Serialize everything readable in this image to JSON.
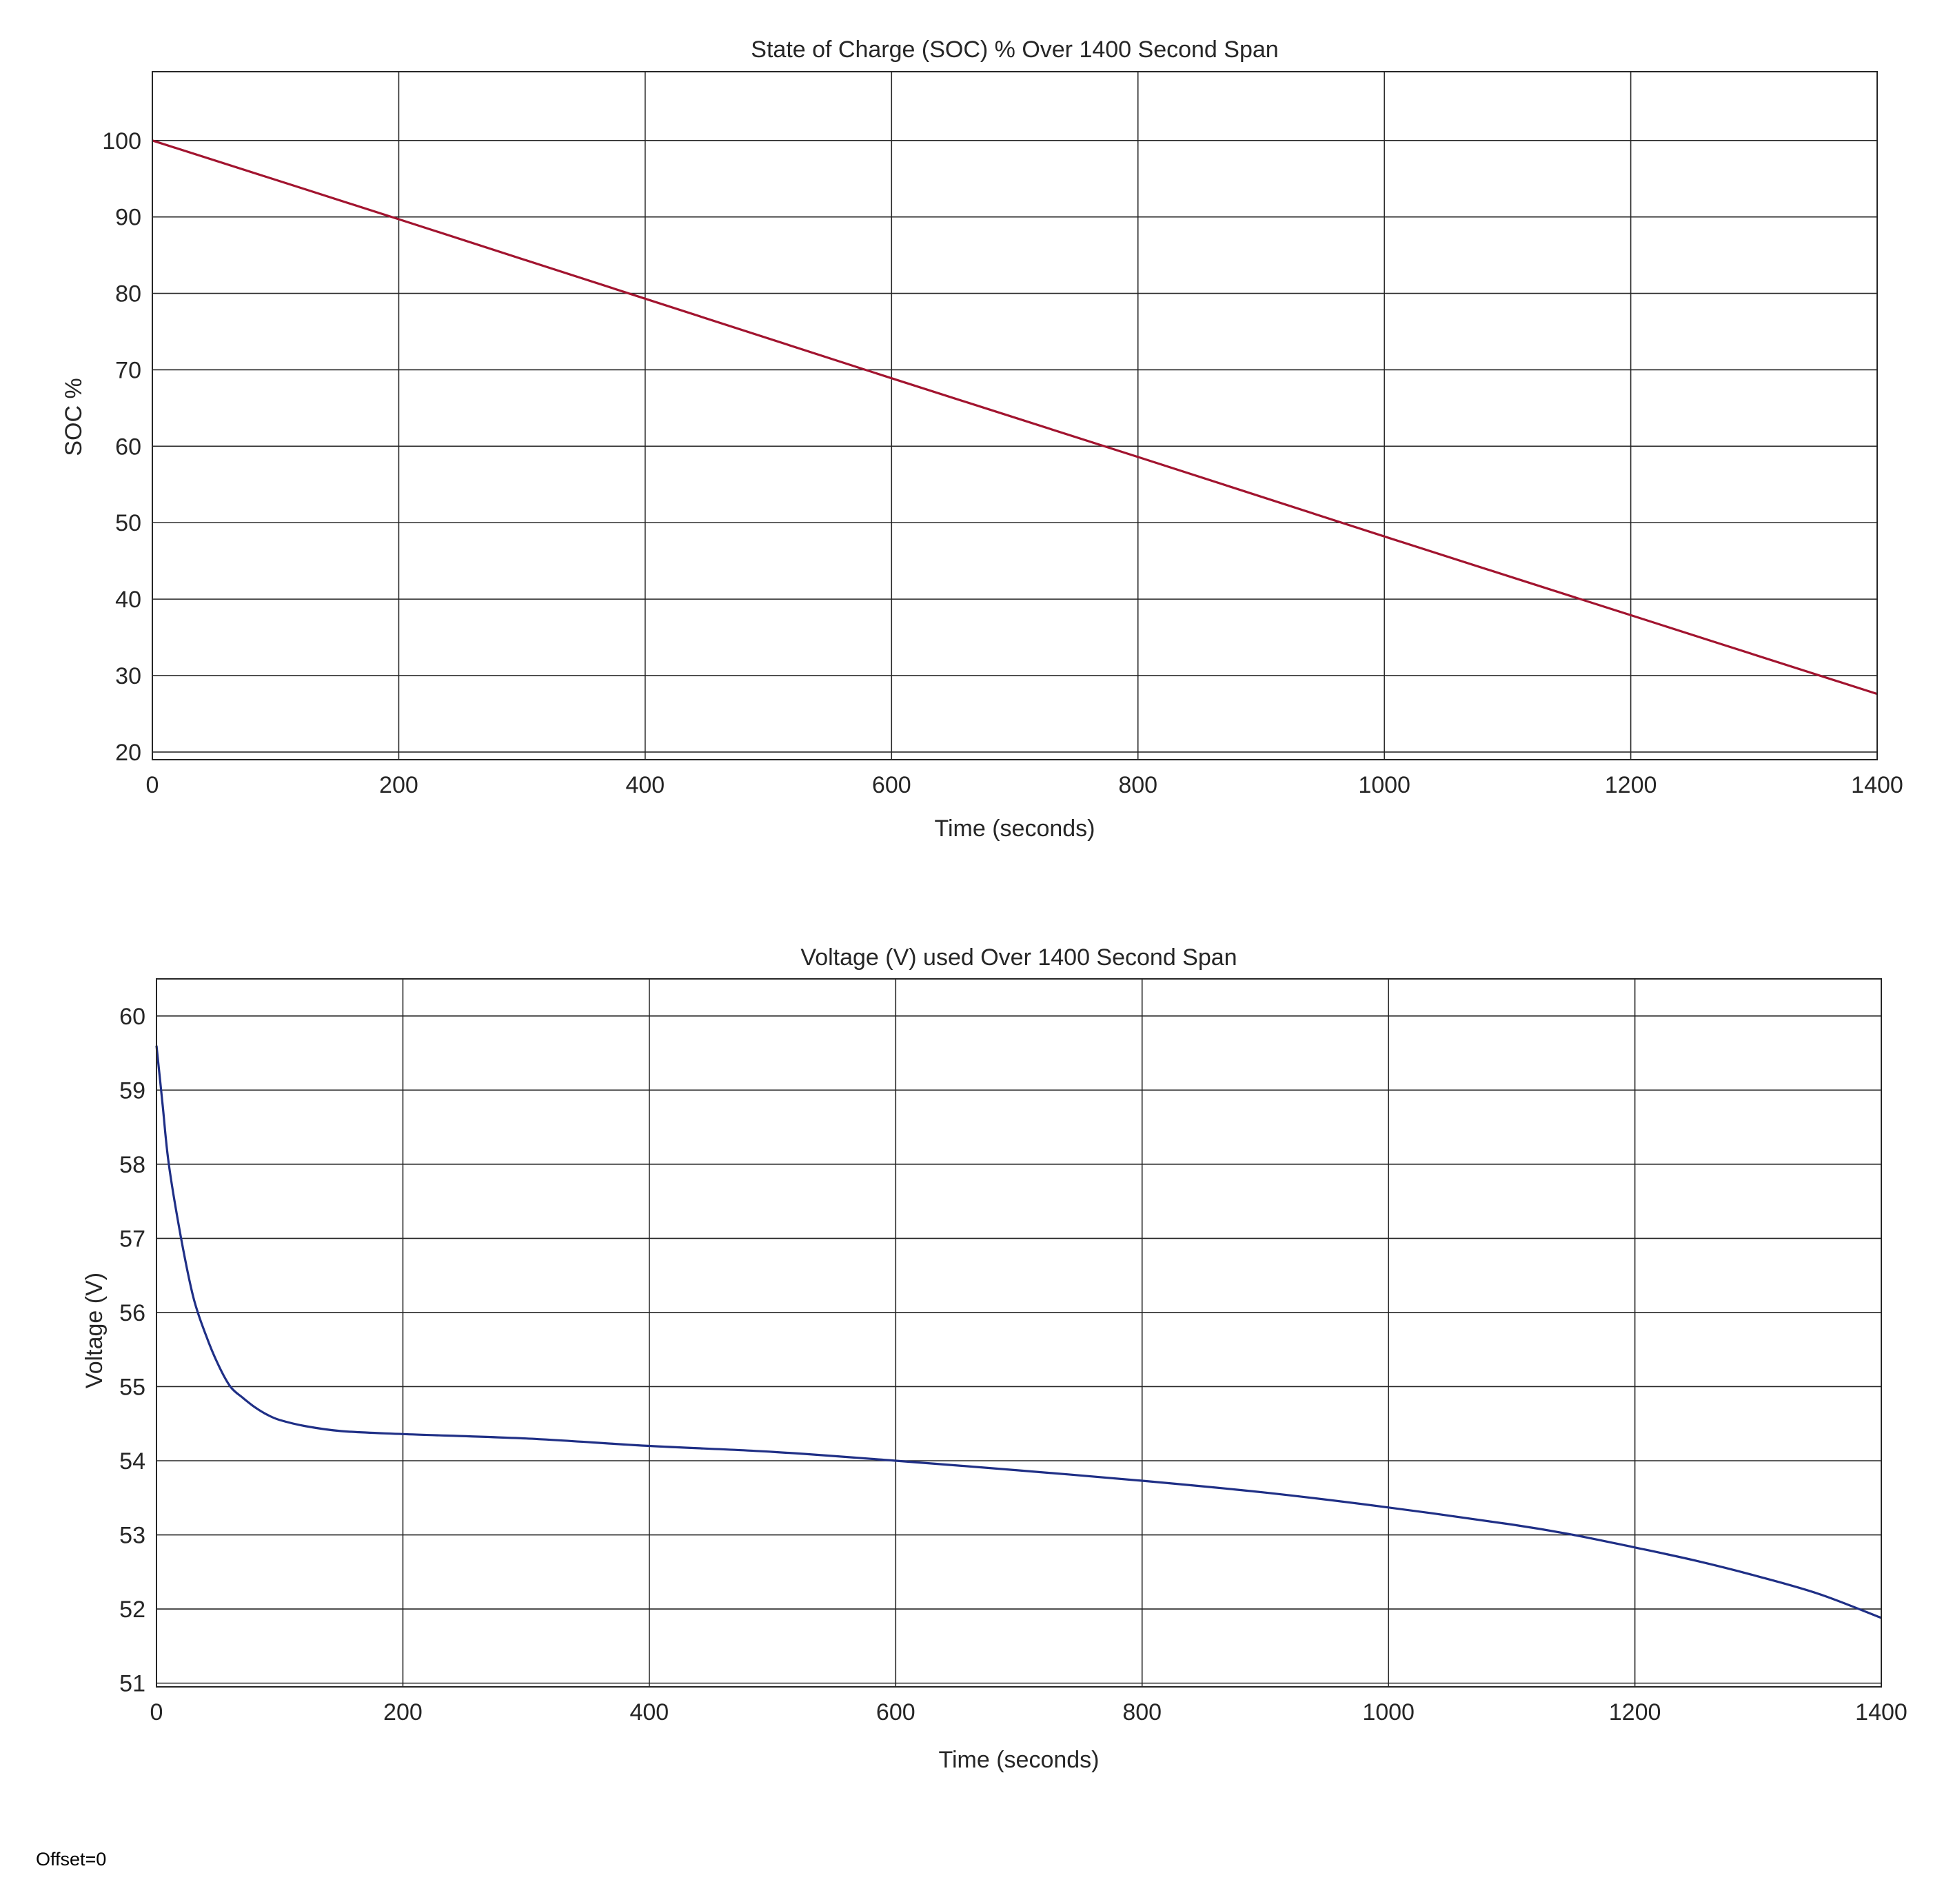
{
  "footer_note": "Offset=0",
  "chart_data": [
    {
      "type": "line",
      "title": "State of Charge (SOC) % Over 1400 Second Span",
      "xlabel": "Time (seconds)",
      "ylabel": "SOC %",
      "xlim": [
        0,
        1400
      ],
      "ylim": [
        19,
        109
      ],
      "xticks": [
        0,
        200,
        400,
        600,
        800,
        1000,
        1200,
        1400
      ],
      "yticks": [
        20,
        30,
        40,
        50,
        60,
        70,
        80,
        90,
        100
      ],
      "grid": true,
      "series": [
        {
          "color": "#a2142f",
          "x": [
            0,
            200,
            400,
            600,
            800,
            1000,
            1200,
            1400
          ],
          "y": [
            100,
            89.7,
            79.3,
            68.9,
            58.6,
            48.2,
            37.9,
            27.6
          ]
        }
      ]
    },
    {
      "type": "line",
      "title": "Voltage (V) used Over 1400 Second Span",
      "xlabel": "Time (seconds)",
      "ylabel": "Voltage (V)",
      "xlim": [
        0,
        1400
      ],
      "ylim": [
        50.95,
        60.5
      ],
      "xticks": [
        0,
        200,
        400,
        600,
        800,
        1000,
        1200,
        1400
      ],
      "yticks": [
        51,
        52,
        53,
        54,
        55,
        56,
        57,
        58,
        59,
        60
      ],
      "grid": true,
      "series": [
        {
          "color": "#1f2f86",
          "x": [
            0,
            5,
            10,
            20,
            30,
            40,
            50,
            60,
            70,
            80,
            90,
            100,
            120,
            150,
            200,
            300,
            400,
            500,
            600,
            700,
            800,
            900,
            1000,
            1100,
            1150,
            1200,
            1250,
            1300,
            1350,
            1400
          ],
          "y": [
            59.6,
            58.8,
            58.0,
            57.0,
            56.2,
            55.7,
            55.3,
            55.0,
            54.85,
            54.72,
            54.62,
            54.55,
            54.47,
            54.4,
            54.36,
            54.3,
            54.2,
            54.12,
            54.0,
            53.87,
            53.73,
            53.57,
            53.37,
            53.14,
            53.0,
            52.83,
            52.65,
            52.44,
            52.2,
            51.88
          ]
        }
      ]
    }
  ]
}
